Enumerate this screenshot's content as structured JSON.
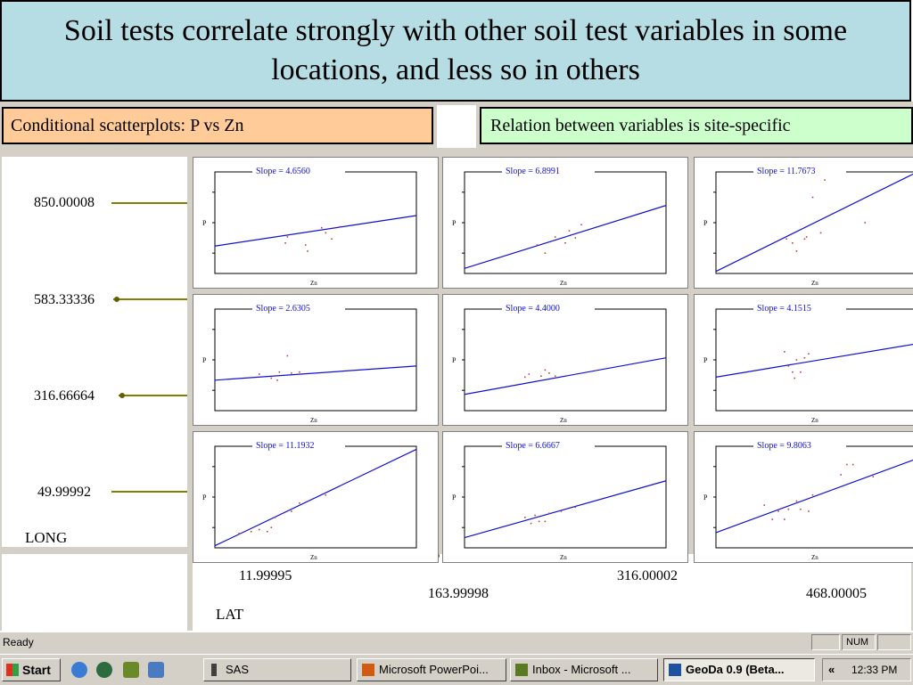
{
  "slide": {
    "title": "Soil tests correlate strongly with other soil test variables in some locations, and less so in others",
    "label_left": "Conditional scatterplots: P vs Zn",
    "label_right": "Relation between variables is site-specific"
  },
  "conditioning": {
    "vertical_axis": {
      "name": "LONG",
      "ticks": [
        "850.00008",
        "583.33336",
        "316.66664",
        "49.99992"
      ]
    },
    "horizontal_axis": {
      "name": "LAT",
      "ticks": [
        "11.99995",
        "163.99998",
        "316.00002",
        "468.00005"
      ]
    }
  },
  "chart_data": {
    "type": "scatter",
    "xlabel": "Zn",
    "ylabel": "P",
    "panels": [
      {
        "slope_label": "Slope = 4.6560",
        "slope": 4.656,
        "line": [
          [
            0.0,
            0.27
          ],
          [
            1.0,
            0.57
          ]
        ],
        "points": [
          [
            0.35,
            0.3
          ],
          [
            0.36,
            0.36
          ],
          [
            0.45,
            0.28
          ],
          [
            0.46,
            0.22
          ],
          [
            0.53,
            0.45
          ],
          [
            0.55,
            0.4
          ],
          [
            0.58,
            0.34
          ],
          [
            0.62,
            0.46
          ]
        ]
      },
      {
        "slope_label": "Slope = 6.8991",
        "slope": 6.8991,
        "line": [
          [
            0.0,
            0.05
          ],
          [
            1.0,
            0.67
          ]
        ],
        "points": [
          [
            0.36,
            0.28
          ],
          [
            0.4,
            0.2
          ],
          [
            0.45,
            0.36
          ],
          [
            0.5,
            0.3
          ],
          [
            0.52,
            0.42
          ],
          [
            0.55,
            0.35
          ],
          [
            0.58,
            0.48
          ]
        ]
      },
      {
        "slope_label": "Slope = 11.7673",
        "slope": 11.7673,
        "line": [
          [
            0.0,
            0.02
          ],
          [
            1.0,
            1.0
          ]
        ],
        "points": [
          [
            0.35,
            0.34
          ],
          [
            0.38,
            0.3
          ],
          [
            0.4,
            0.22
          ],
          [
            0.44,
            0.34
          ],
          [
            0.45,
            0.36
          ],
          [
            0.48,
            0.75
          ],
          [
            0.52,
            0.4
          ],
          [
            0.54,
            0.92
          ],
          [
            0.74,
            0.5
          ]
        ]
      },
      {
        "slope_label": "Slope = 2.6305",
        "slope": 2.6305,
        "line": [
          [
            0.0,
            0.3
          ],
          [
            1.0,
            0.44
          ]
        ],
        "points": [
          [
            0.22,
            0.36
          ],
          [
            0.28,
            0.32
          ],
          [
            0.31,
            0.3
          ],
          [
            0.32,
            0.38
          ],
          [
            0.36,
            0.54
          ],
          [
            0.38,
            0.37
          ],
          [
            0.42,
            0.38
          ]
        ]
      },
      {
        "slope_label": "Slope = 4.4000",
        "slope": 4.4,
        "line": [
          [
            0.0,
            0.16
          ],
          [
            1.0,
            0.52
          ]
        ],
        "points": [
          [
            0.3,
            0.33
          ],
          [
            0.32,
            0.36
          ],
          [
            0.38,
            0.34
          ],
          [
            0.4,
            0.4
          ],
          [
            0.42,
            0.37
          ],
          [
            0.45,
            0.34
          ]
        ]
      },
      {
        "slope_label": "Slope = 4.1515",
        "slope": 4.1515,
        "line": [
          [
            0.0,
            0.33
          ],
          [
            1.0,
            0.66
          ]
        ],
        "points": [
          [
            0.34,
            0.58
          ],
          [
            0.36,
            0.44
          ],
          [
            0.38,
            0.38
          ],
          [
            0.39,
            0.32
          ],
          [
            0.4,
            0.5
          ],
          [
            0.42,
            0.38
          ],
          [
            0.44,
            0.52
          ],
          [
            0.46,
            0.56
          ]
        ]
      },
      {
        "slope_label": "Slope = 11.1932",
        "slope": 11.1932,
        "line": [
          [
            0.0,
            0.02
          ],
          [
            1.0,
            0.97
          ]
        ],
        "points": [
          [
            0.12,
            0.14
          ],
          [
            0.18,
            0.16
          ],
          [
            0.22,
            0.18
          ],
          [
            0.26,
            0.16
          ],
          [
            0.28,
            0.2
          ],
          [
            0.3,
            0.3
          ],
          [
            0.38,
            0.36
          ],
          [
            0.42,
            0.44
          ],
          [
            0.55,
            0.52
          ]
        ]
      },
      {
        "slope_label": "Slope = 6.6667",
        "slope": 6.6667,
        "line": [
          [
            0.0,
            0.1
          ],
          [
            1.0,
            0.66
          ]
        ],
        "points": [
          [
            0.3,
            0.3
          ],
          [
            0.33,
            0.24
          ],
          [
            0.35,
            0.32
          ],
          [
            0.37,
            0.26
          ],
          [
            0.4,
            0.26
          ],
          [
            0.42,
            0.34
          ],
          [
            0.48,
            0.36
          ],
          [
            0.55,
            0.4
          ]
        ]
      },
      {
        "slope_label": "Slope = 9.8063",
        "slope": 9.8063,
        "line": [
          [
            0.0,
            0.15
          ],
          [
            1.0,
            0.88
          ]
        ],
        "points": [
          [
            0.24,
            0.42
          ],
          [
            0.28,
            0.28
          ],
          [
            0.31,
            0.36
          ],
          [
            0.34,
            0.28
          ],
          [
            0.36,
            0.38
          ],
          [
            0.4,
            0.46
          ],
          [
            0.42,
            0.38
          ],
          [
            0.46,
            0.36
          ],
          [
            0.48,
            0.52
          ],
          [
            0.62,
            0.72
          ],
          [
            0.65,
            0.82
          ],
          [
            0.68,
            0.82
          ],
          [
            0.78,
            0.7
          ]
        ]
      }
    ],
    "line_color": "#1010d0",
    "point_color": "#c04040"
  },
  "status_bar": {
    "text": "Ready",
    "indicator": "NUM"
  },
  "taskbar": {
    "start_label": "Start",
    "items": [
      {
        "label": "SAS",
        "active": false
      },
      {
        "label": "Microsoft PowerPoi...",
        "active": false
      },
      {
        "label": "Inbox - Microsoft ...",
        "active": false
      },
      {
        "label": "GeoDa 0.9 (Beta...",
        "active": true
      }
    ],
    "tray_chevron": "«",
    "clock": "12:33 PM"
  },
  "colors": {
    "title_bg": "#b6dde3",
    "label_left_bg": "#ffcc99",
    "label_right_bg": "#ccffcc",
    "tick_line": "#808000"
  }
}
